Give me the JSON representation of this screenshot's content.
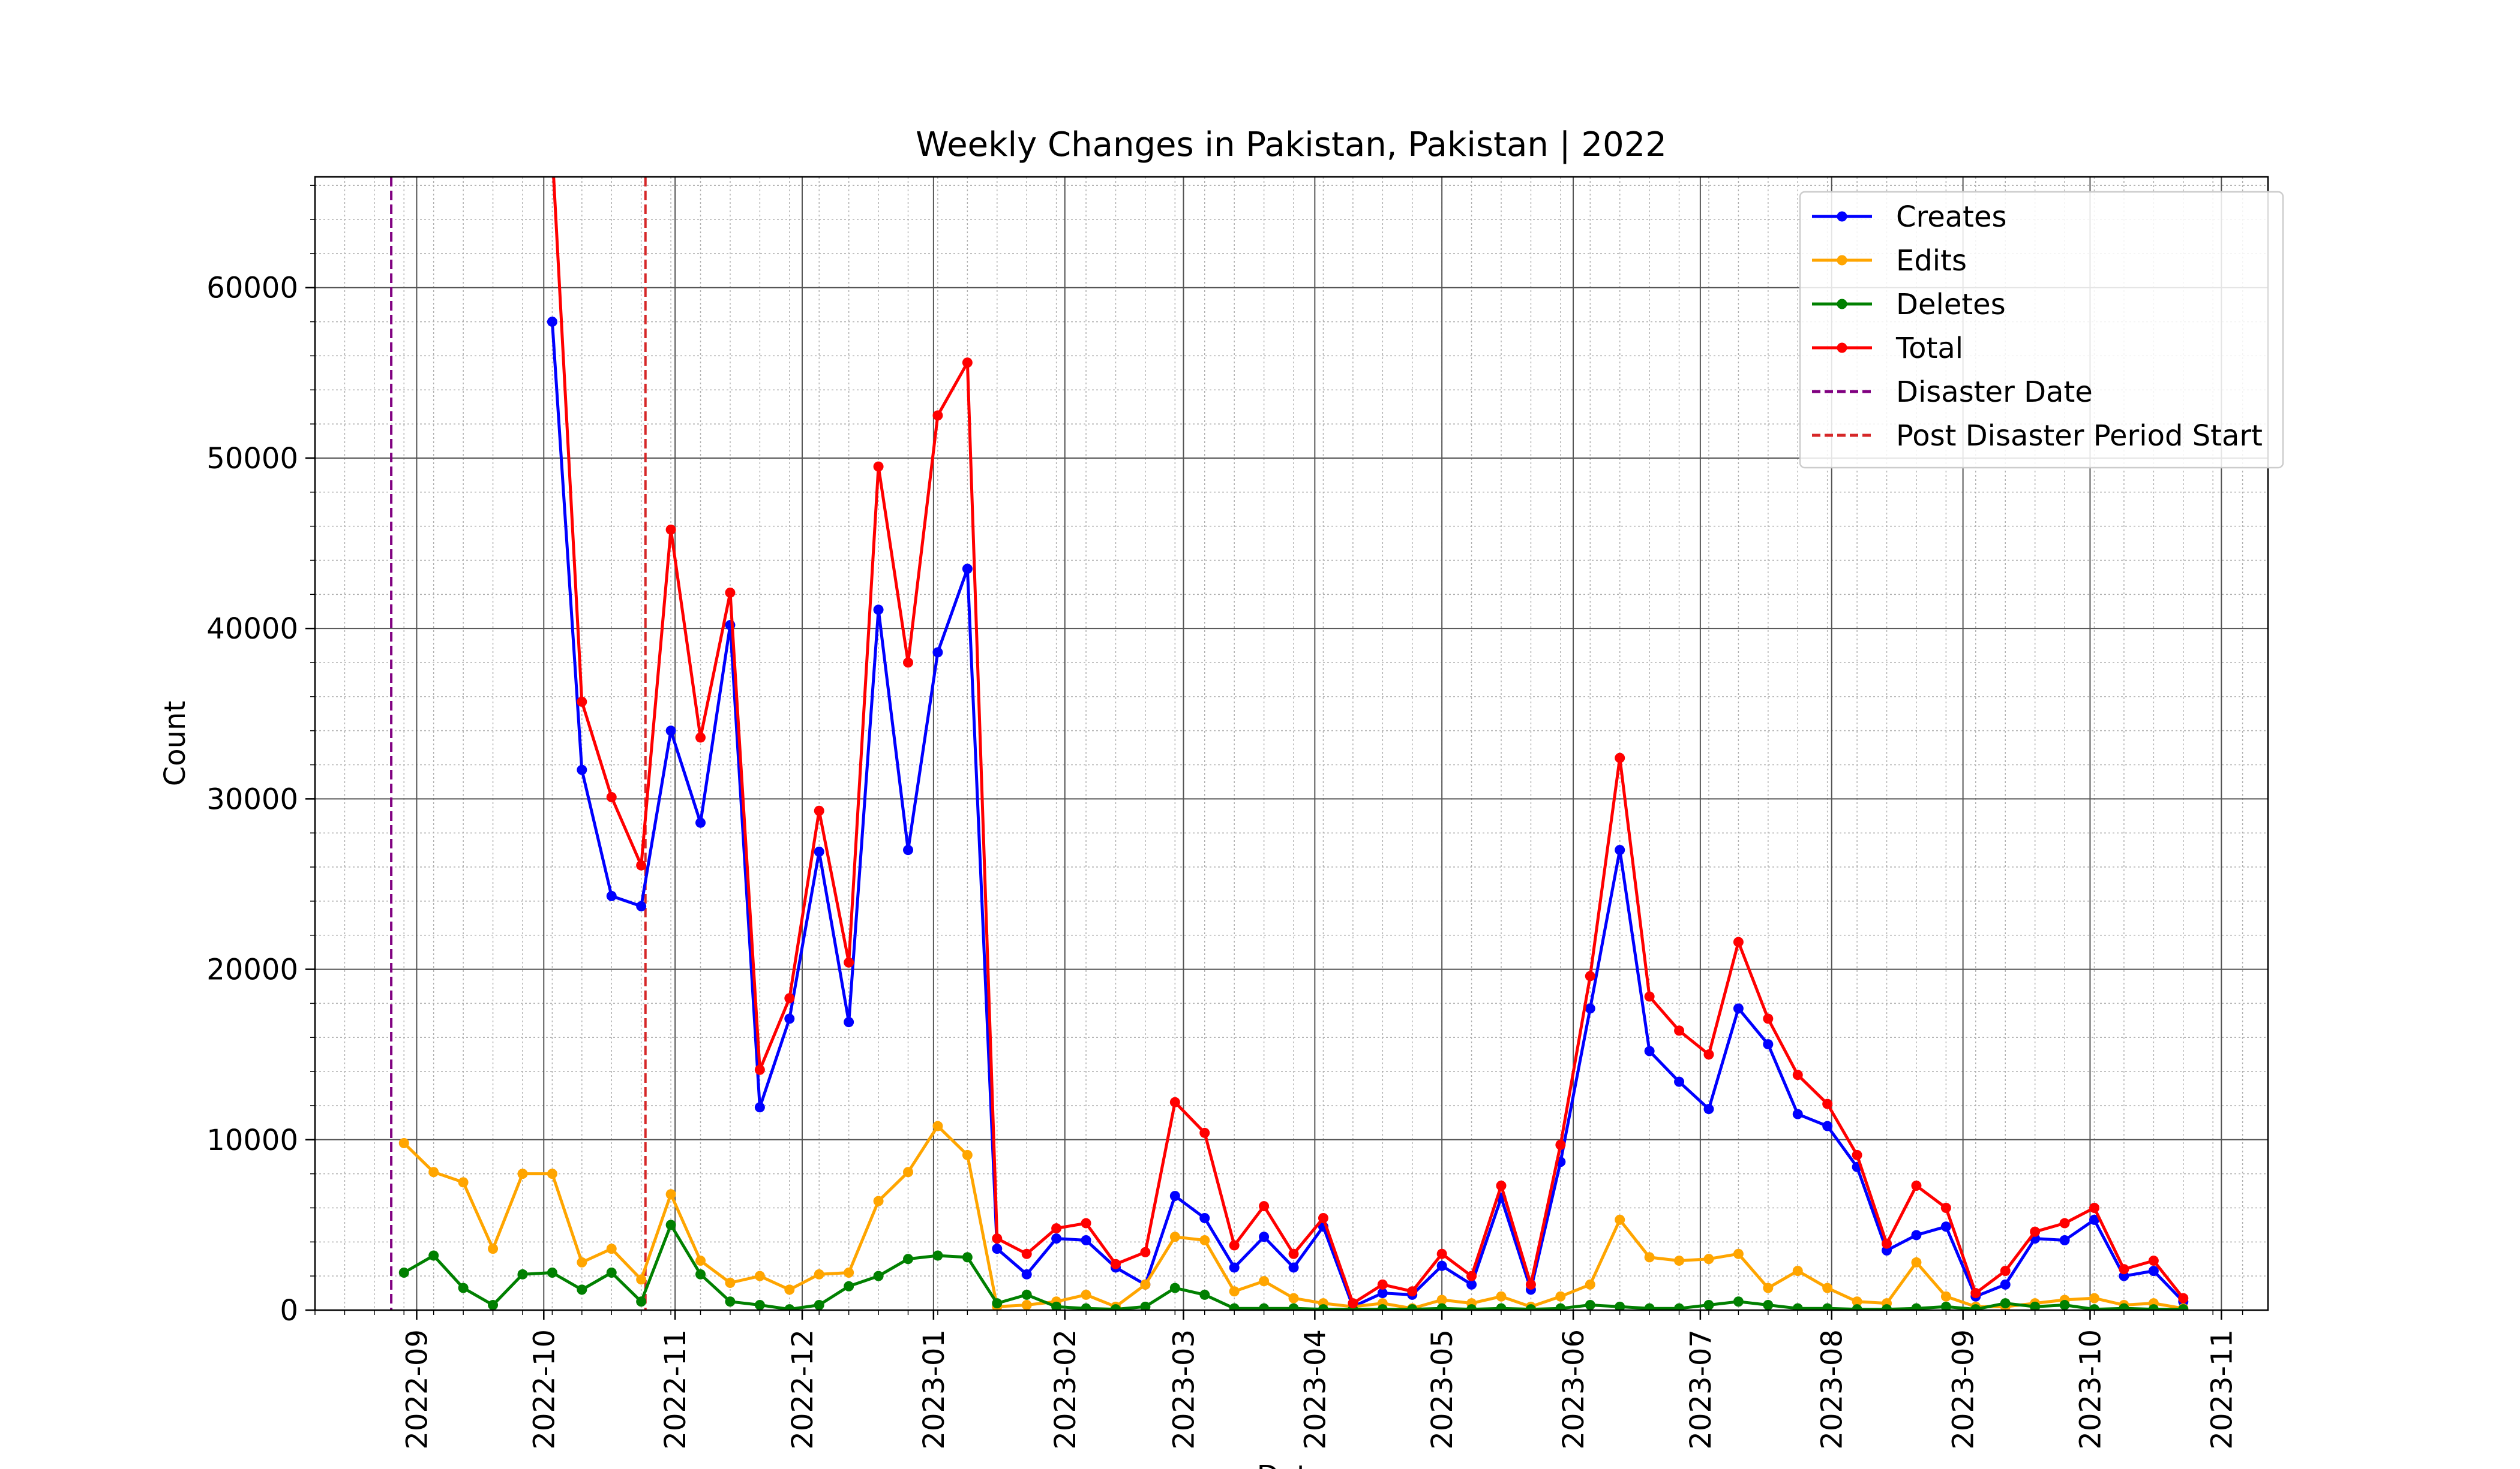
{
  "chart_data": {
    "type": "line",
    "title": "Weekly Changes in Pakistan, Pakistan | 2022",
    "xlabel": "Date",
    "ylabel": "Count",
    "ylim": [
      0,
      66500
    ],
    "xlim": [
      "2022-08-08",
      "2023-11-12"
    ],
    "yticks": [
      0,
      10000,
      20000,
      30000,
      40000,
      50000,
      60000
    ],
    "ytick_labels": [
      "0",
      "10000",
      "20000",
      "30000",
      "40000",
      "50000",
      "60000"
    ],
    "xticks": [
      "2022-09-01",
      "2022-10-01",
      "2022-11-01",
      "2022-12-01",
      "2023-01-01",
      "2023-02-01",
      "2023-03-01",
      "2023-04-01",
      "2023-05-01",
      "2023-06-01",
      "2023-07-01",
      "2023-08-01",
      "2023-09-01",
      "2023-10-01",
      "2023-11-01"
    ],
    "xtick_labels": [
      "2022-09",
      "2022-10",
      "2022-11",
      "2022-12",
      "2023-01",
      "2023-02",
      "2023-03",
      "2023-04",
      "2023-05",
      "2023-06",
      "2023-07",
      "2023-08",
      "2023-09",
      "2023-10",
      "2023-11"
    ],
    "grid": true,
    "legend_position": "top-right",
    "x": [
      "2022-08-29",
      "2022-09-05",
      "2022-09-12",
      "2022-09-19",
      "2022-09-26",
      "2022-10-03",
      "2022-10-10",
      "2022-10-17",
      "2022-10-24",
      "2022-10-31",
      "2022-11-07",
      "2022-11-14",
      "2022-11-21",
      "2022-11-28",
      "2022-12-05",
      "2022-12-12",
      "2022-12-19",
      "2022-12-26",
      "2023-01-02",
      "2023-01-09",
      "2023-01-16",
      "2023-01-23",
      "2023-01-30",
      "2023-02-06",
      "2023-02-13",
      "2023-02-20",
      "2023-02-27",
      "2023-03-06",
      "2023-03-13",
      "2023-03-20",
      "2023-03-27",
      "2023-04-03",
      "2023-04-10",
      "2023-04-17",
      "2023-04-24",
      "2023-05-01",
      "2023-05-08",
      "2023-05-15",
      "2023-05-22",
      "2023-05-29",
      "2023-06-05",
      "2023-06-12",
      "2023-06-19",
      "2023-06-26",
      "2023-07-03",
      "2023-07-10",
      "2023-07-17",
      "2023-07-24",
      "2023-07-31",
      "2023-08-07",
      "2023-08-14",
      "2023-08-21",
      "2023-08-28",
      "2023-09-04",
      "2023-09-11",
      "2023-09-18",
      "2023-09-25",
      "2023-10-02",
      "2023-10-09",
      "2023-10-16",
      "2023-10-23"
    ],
    "series": [
      {
        "name": "Creates",
        "color": "#0000ff",
        "values": [
          null,
          null,
          null,
          null,
          null,
          58000,
          31700,
          24300,
          23700,
          34000,
          28600,
          40200,
          11900,
          17100,
          26900,
          16900,
          41100,
          27000,
          38600,
          43500,
          3600,
          2100,
          4200,
          4100,
          2500,
          1500,
          6700,
          5400,
          2500,
          4300,
          2500,
          4900,
          200,
          1000,
          900,
          2600,
          1500,
          6600,
          1200,
          8700,
          17700,
          27000,
          15200,
          13400,
          11800,
          17700,
          15600,
          11500,
          10800,
          8400,
          3500,
          4400,
          4900,
          800,
          1500,
          4200,
          4100,
          5300,
          2000,
          2300,
          500
        ]
      },
      {
        "name": "Edits",
        "color": "#ffa500",
        "values": [
          9800,
          8100,
          7500,
          3600,
          8000,
          8000,
          2800,
          3600,
          1800,
          6800,
          2900,
          1600,
          2000,
          1200,
          2100,
          2200,
          6400,
          8100,
          10800,
          9100,
          200,
          300,
          500,
          900,
          200,
          1500,
          4300,
          4100,
          1100,
          1700,
          700,
          400,
          200,
          400,
          100,
          600,
          400,
          800,
          200,
          800,
          1500,
          5300,
          3100,
          2900,
          3000,
          3300,
          1300,
          2300,
          1300,
          500,
          400,
          2800,
          800,
          200,
          200,
          400,
          600,
          700,
          300,
          400,
          100
        ]
      },
      {
        "name": "Deletes",
        "color": "#008000",
        "values": [
          2200,
          3200,
          1300,
          300,
          2100,
          2200,
          1200,
          2200,
          500,
          5000,
          2100,
          500,
          300,
          50,
          300,
          1400,
          2000,
          3000,
          3200,
          3100,
          400,
          900,
          200,
          100,
          50,
          200,
          1300,
          900,
          100,
          100,
          100,
          50,
          50,
          50,
          50,
          100,
          50,
          100,
          50,
          100,
          300,
          200,
          100,
          100,
          300,
          500,
          300,
          100,
          100,
          50,
          50,
          100,
          200,
          50,
          400,
          200,
          300,
          50,
          100,
          50,
          50
        ]
      },
      {
        "name": "Total",
        "color": "#ff0000",
        "values": [
          null,
          null,
          null,
          null,
          null,
          68000,
          35700,
          30100,
          26100,
          45800,
          33600,
          42100,
          14100,
          18300,
          29300,
          20400,
          49500,
          38000,
          52500,
          55600,
          4200,
          3300,
          4800,
          5100,
          2700,
          3400,
          12200,
          10400,
          3800,
          6100,
          3300,
          5400,
          400,
          1500,
          1100,
          3300,
          2000,
          7300,
          1500,
          9700,
          19600,
          32400,
          18400,
          16400,
          15000,
          21600,
          17100,
          13800,
          12100,
          9100,
          3900,
          7300,
          6000,
          1000,
          2300,
          4600,
          5100,
          6000,
          2400,
          2900,
          700
        ]
      }
    ],
    "vlines": [
      {
        "name": "Disaster Date",
        "date": "2022-08-26",
        "color": "#800080"
      },
      {
        "name": "Post Disaster Period Start",
        "date": "2022-10-25",
        "color": "#d62728"
      }
    ]
  }
}
